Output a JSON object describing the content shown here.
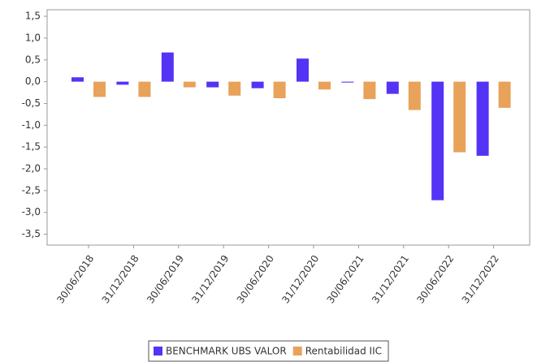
{
  "chart_data": {
    "type": "bar",
    "categories": [
      "30/06/2018",
      "31/12/2018",
      "30/06/2019",
      "31/12/2019",
      "30/06/2020",
      "31/12/2020",
      "30/06/2021",
      "31/12/2021",
      "30/06/2022",
      "31/12/2022"
    ],
    "series": [
      {
        "name": "BENCHMARK UBS VALOR",
        "color": "#5533f5",
        "values": [
          0.1,
          -0.07,
          0.67,
          -0.13,
          -0.15,
          0.53,
          -0.02,
          -0.28,
          -2.72,
          -1.7
        ]
      },
      {
        "name": "Rentabilidad IIC",
        "color": "#e8a25a",
        "values": [
          -0.35,
          -0.35,
          -0.13,
          -0.32,
          -0.38,
          -0.18,
          -0.4,
          -0.65,
          -1.62,
          -0.6
        ]
      }
    ],
    "ylim": [
      -3.75,
      1.65
    ],
    "yticks": [
      {
        "value": 1.5,
        "label": "1,5"
      },
      {
        "value": 1.0,
        "label": "1,0"
      },
      {
        "value": 0.5,
        "label": "0,5"
      },
      {
        "value": 0.0,
        "label": "0,0"
      },
      {
        "value": -0.5,
        "label": "-0,5"
      },
      {
        "value": -1.0,
        "label": "-1,0"
      },
      {
        "value": -1.5,
        "label": "-1,5"
      },
      {
        "value": -2.0,
        "label": "-2,0"
      },
      {
        "value": -2.5,
        "label": "-2,5"
      },
      {
        "value": -3.0,
        "label": "-3,0"
      },
      {
        "value": -3.5,
        "label": "-3,5"
      }
    ],
    "legend": "bottom"
  }
}
